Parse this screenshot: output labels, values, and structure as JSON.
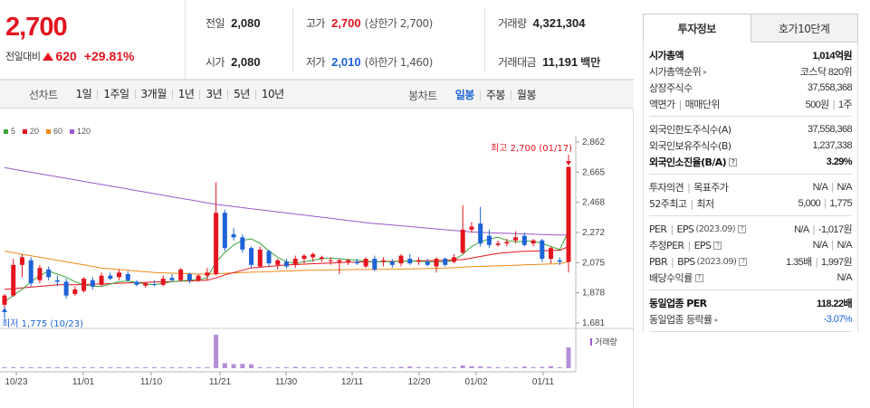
{
  "summary": {
    "price": "2,700",
    "change_label": "전일대비",
    "change_value": "620",
    "change_rate": "+29.81%",
    "prev_close": {
      "label": "전일",
      "value": "2,080"
    },
    "open": {
      "label": "시가",
      "value": "2,080"
    },
    "high": {
      "label": "고가",
      "value": "2,700",
      "note": "(상한가 2,700)"
    },
    "low": {
      "label": "저가",
      "value": "2,010",
      "note": "(하한가 1,460)"
    },
    "volume": {
      "label": "거래량",
      "value": "4,321,304"
    },
    "amount": {
      "label": "거래대금",
      "value": "11,191",
      "unit": "백만"
    }
  },
  "period_bar": {
    "line_label": "선차트",
    "line_items": [
      "1일",
      "1주일",
      "3개월",
      "1년",
      "3년",
      "5년",
      "10년"
    ],
    "candle_label": "봉차트",
    "candle_items": [
      "일봉",
      "주봉",
      "월봉"
    ],
    "candle_active": "일봉"
  },
  "chart_data": {
    "type": "candlestick",
    "legend": [
      {
        "name": "5",
        "color": "#3aa63a"
      },
      {
        "name": "20",
        "color": "#e4141f"
      },
      {
        "name": "60",
        "color": "#f08a17"
      },
      {
        "name": "120",
        "color": "#9b59c9"
      }
    ],
    "y_ticks": [
      "2,862",
      "2,665",
      "2,468",
      "2,272",
      "2,075",
      "1,878",
      "1,681"
    ],
    "ylim": [
      1681,
      2862
    ],
    "x_ticks": [
      "10/23",
      "11/01",
      "11/10",
      "11/21",
      "11/30",
      "12/11",
      "12/20",
      "01/02",
      "01/11"
    ],
    "max_label": "최고 2,700 (01/17)",
    "min_label": "최저 1,775 (10/23)",
    "volume_label": "거래량",
    "colors": {
      "up": "#e4141f",
      "down": "#1e63d8"
    },
    "candles": [
      {
        "o": 1800,
        "h": 1870,
        "l": 1775,
        "c": 1860
      },
      {
        "o": 1860,
        "h": 2100,
        "l": 1850,
        "c": 2060
      },
      {
        "o": 2060,
        "h": 2130,
        "l": 1980,
        "c": 2110
      },
      {
        "o": 2090,
        "h": 2110,
        "l": 1920,
        "c": 1940
      },
      {
        "o": 1960,
        "h": 2060,
        "l": 1940,
        "c": 2040
      },
      {
        "o": 2030,
        "h": 2050,
        "l": 1960,
        "c": 1980
      },
      {
        "o": 1960,
        "h": 1990,
        "l": 1920,
        "c": 1950
      },
      {
        "o": 1950,
        "h": 1970,
        "l": 1840,
        "c": 1860
      },
      {
        "o": 1870,
        "h": 1920,
        "l": 1860,
        "c": 1900
      },
      {
        "o": 1890,
        "h": 1980,
        "l": 1880,
        "c": 1970
      },
      {
        "o": 1960,
        "h": 1980,
        "l": 1900,
        "c": 1920
      },
      {
        "o": 1930,
        "h": 2010,
        "l": 1920,
        "c": 1990
      },
      {
        "o": 1990,
        "h": 2010,
        "l": 1960,
        "c": 1970
      },
      {
        "o": 1980,
        "h": 2030,
        "l": 1960,
        "c": 2010
      },
      {
        "o": 2000,
        "h": 2020,
        "l": 1950,
        "c": 1960
      },
      {
        "o": 1950,
        "h": 1960,
        "l": 1920,
        "c": 1930
      },
      {
        "o": 1925,
        "h": 1950,
        "l": 1910,
        "c": 1940
      },
      {
        "o": 1935,
        "h": 1960,
        "l": 1920,
        "c": 1930
      },
      {
        "o": 1930,
        "h": 1990,
        "l": 1920,
        "c": 1970
      },
      {
        "o": 1975,
        "h": 2000,
        "l": 1955,
        "c": 1960
      },
      {
        "o": 1960,
        "h": 2040,
        "l": 1950,
        "c": 2030
      },
      {
        "o": 2000,
        "h": 2010,
        "l": 1940,
        "c": 1960
      },
      {
        "o": 1960,
        "h": 2000,
        "l": 1950,
        "c": 1990
      },
      {
        "o": 1990,
        "h": 2040,
        "l": 1960,
        "c": 2010
      },
      {
        "o": 2000,
        "h": 2600,
        "l": 1990,
        "c": 2400
      },
      {
        "o": 2400,
        "h": 2420,
        "l": 2150,
        "c": 2170
      },
      {
        "o": 2260,
        "h": 2300,
        "l": 2220,
        "c": 2240
      },
      {
        "o": 2240,
        "h": 2260,
        "l": 2140,
        "c": 2160
      },
      {
        "o": 2170,
        "h": 2180,
        "l": 2040,
        "c": 2060
      },
      {
        "o": 2050,
        "h": 2180,
        "l": 2040,
        "c": 2160
      },
      {
        "o": 2150,
        "h": 2160,
        "l": 2050,
        "c": 2070
      },
      {
        "o": 2060,
        "h": 2100,
        "l": 2030,
        "c": 2090
      },
      {
        "o": 2080,
        "h": 2100,
        "l": 2040,
        "c": 2050
      },
      {
        "o": 2060,
        "h": 2120,
        "l": 2040,
        "c": 2100
      },
      {
        "o": 2100,
        "h": 2130,
        "l": 2070,
        "c": 2120
      },
      {
        "o": 2110,
        "h": 2140,
        "l": 2080,
        "c": 2130
      },
      {
        "o": 2100,
        "h": 2120,
        "l": 2080,
        "c": 2110
      },
      {
        "o": 2090,
        "h": 2110,
        "l": 2060,
        "c": 2090
      },
      {
        "o": 2080,
        "h": 2100,
        "l": 2000,
        "c": 2090
      },
      {
        "o": 2080,
        "h": 2100,
        "l": 2060,
        "c": 2090
      },
      {
        "o": 2080,
        "h": 2100,
        "l": 2060,
        "c": 2070
      },
      {
        "o": 2050,
        "h": 2110,
        "l": 2040,
        "c": 2100
      },
      {
        "o": 2100,
        "h": 2120,
        "l": 2020,
        "c": 2030
      },
      {
        "o": 2080,
        "h": 2110,
        "l": 2050,
        "c": 2090
      },
      {
        "o": 2080,
        "h": 2100,
        "l": 2040,
        "c": 2060
      },
      {
        "o": 2070,
        "h": 2130,
        "l": 2050,
        "c": 2120
      },
      {
        "o": 2100,
        "h": 2130,
        "l": 2060,
        "c": 2070
      },
      {
        "o": 2080,
        "h": 2110,
        "l": 2060,
        "c": 2090
      },
      {
        "o": 2080,
        "h": 2100,
        "l": 2050,
        "c": 2060
      },
      {
        "o": 2050,
        "h": 2110,
        "l": 2010,
        "c": 2100
      },
      {
        "o": 2100,
        "h": 2110,
        "l": 2050,
        "c": 2060
      },
      {
        "o": 2080,
        "h": 2130,
        "l": 2070,
        "c": 2110
      },
      {
        "o": 2140,
        "h": 2450,
        "l": 2130,
        "c": 2290
      },
      {
        "o": 2290,
        "h": 2340,
        "l": 2270,
        "c": 2310
      },
      {
        "o": 2330,
        "h": 2440,
        "l": 2180,
        "c": 2200
      },
      {
        "o": 2250,
        "h": 2290,
        "l": 2170,
        "c": 2190
      },
      {
        "o": 2190,
        "h": 2220,
        "l": 2180,
        "c": 2200
      },
      {
        "o": 2200,
        "h": 2230,
        "l": 2180,
        "c": 2210
      },
      {
        "o": 2220,
        "h": 2280,
        "l": 2200,
        "c": 2240
      },
      {
        "o": 2250,
        "h": 2270,
        "l": 2180,
        "c": 2190
      },
      {
        "o": 2200,
        "h": 2230,
        "l": 2180,
        "c": 2220
      },
      {
        "o": 2220,
        "h": 2230,
        "l": 2080,
        "c": 2100
      },
      {
        "o": 2100,
        "h": 2180,
        "l": 2070,
        "c": 2170
      },
      {
        "o": 2090,
        "h": 2110,
        "l": 2060,
        "c": 2080
      },
      {
        "o": 2080,
        "h": 2700,
        "l": 2010,
        "c": 2700
      }
    ],
    "volumes": [
      0.02,
      0.03,
      0.02,
      0.02,
      0.01,
      0.01,
      0.01,
      0.02,
      0.01,
      0.01,
      0.01,
      0.01,
      0.01,
      0.01,
      0.01,
      0.01,
      0.01,
      0.01,
      0.01,
      0.01,
      0.01,
      0.01,
      0.01,
      0.01,
      1.0,
      0.15,
      0.12,
      0.13,
      0.12,
      0.03,
      0.02,
      0.02,
      0.01,
      0.04,
      0.03,
      0.02,
      0.02,
      0.02,
      0.01,
      0.01,
      0.02,
      0.03,
      0.02,
      0.01,
      0.02,
      0.04,
      0.05,
      0.03,
      0.02,
      0.02,
      0.01,
      0.02,
      0.08,
      0.06,
      0.05,
      0.04,
      0.03,
      0.02,
      0.03,
      0.05,
      0.03,
      0.04,
      0.06,
      0.03,
      0.62
    ],
    "ma5": [
      1820,
      1860,
      1900,
      1950,
      1990,
      2020,
      2000,
      1980,
      1950,
      1930,
      1920,
      1920,
      1935,
      1950,
      1955,
      1945,
      1935,
      1930,
      1940,
      1950,
      1955,
      1960,
      1965,
      1975,
      2080,
      2140,
      2190,
      2220,
      2230,
      2200,
      2150,
      2110,
      2080,
      2070,
      2080,
      2090,
      2100,
      2105,
      2100,
      2095,
      2090,
      2085,
      2080,
      2080,
      2080,
      2085,
      2085,
      2085,
      2080,
      2080,
      2080,
      2090,
      2130,
      2180,
      2210,
      2230,
      2240,
      2220,
      2210,
      2215,
      2215,
      2200,
      2180,
      2160,
      2280
    ],
    "ma20": [
      1900,
      1905,
      1910,
      1915,
      1920,
      1925,
      1930,
      1930,
      1930,
      1932,
      1935,
      1935,
      1938,
      1940,
      1942,
      1945,
      1945,
      1948,
      1950,
      1950,
      1955,
      1955,
      1958,
      1960,
      1975,
      1995,
      2010,
      2025,
      2040,
      2045,
      2050,
      2055,
      2060,
      2062,
      2065,
      2068,
      2070,
      2072,
      2075,
      2077,
      2078,
      2080,
      2080,
      2082,
      2083,
      2085,
      2085,
      2087,
      2088,
      2088,
      2090,
      2092,
      2095,
      2105,
      2115,
      2125,
      2135,
      2140,
      2145,
      2148,
      2150,
      2152,
      2155,
      2155,
      2180
    ],
    "ma60": [
      2150,
      2140,
      2130,
      2120,
      2110,
      2100,
      2090,
      2080,
      2070,
      2060,
      2050,
      2040,
      2035,
      2030,
      2025,
      2020,
      2015,
      2010,
      2008,
      2006,
      2004,
      2002,
      2000,
      2000,
      2002,
      2005,
      2008,
      2010,
      2012,
      2014,
      2016,
      2018,
      2020,
      2022,
      2024,
      2025,
      2026,
      2027,
      2028,
      2029,
      2030,
      2030,
      2030,
      2031,
      2032,
      2033,
      2034,
      2035,
      2036,
      2038,
      2040,
      2042,
      2045,
      2048,
      2050,
      2052,
      2054,
      2056,
      2058,
      2060,
      2062,
      2064,
      2066,
      2068,
      2080
    ],
    "ma120": [
      2695,
      2685,
      2675,
      2665,
      2655,
      2645,
      2635,
      2625,
      2615,
      2605,
      2595,
      2585,
      2575,
      2565,
      2555,
      2545,
      2535,
      2525,
      2515,
      2505,
      2495,
      2485,
      2475,
      2465,
      2455,
      2448,
      2441,
      2434,
      2427,
      2420,
      2413,
      2406,
      2399,
      2392,
      2385,
      2378,
      2371,
      2364,
      2357,
      2350,
      2343,
      2336,
      2330,
      2325,
      2320,
      2315,
      2310,
      2305,
      2300,
      2295,
      2290,
      2285,
      2280,
      2275,
      2272,
      2270,
      2268,
      2266,
      2264,
      2262,
      2260,
      2258,
      2256,
      2255,
      2255
    ]
  },
  "tabs": [
    "투자정보",
    "호가10단계"
  ],
  "info": {
    "market_cap": {
      "label": "시가총액",
      "value": "1,014억원"
    },
    "market_cap_rank": {
      "label": "시가총액순위",
      "value": "코스닥 820위"
    },
    "shares": {
      "label": "상장주식수",
      "value": "37,558,368"
    },
    "par_value": {
      "label": "액면가",
      "label2": "매매단위",
      "value": "500원",
      "value2": "1주"
    },
    "foreign_limit": {
      "label": "외국인한도주식수(A)",
      "value": "37,558,368"
    },
    "foreign_hold": {
      "label": "외국인보유주식수(B)",
      "value": "1,237,338"
    },
    "foreign_ratio": {
      "label": "외국인소진율(B/A)",
      "value": "3.29%"
    },
    "opinion": {
      "label": "투자의견",
      "label2": "목표주가",
      "value": "N/A",
      "value2": "N/A"
    },
    "week52": {
      "label": "52주최고",
      "label2": "최저",
      "value": "5,000",
      "value2": "1,775"
    },
    "per": {
      "label": "PER",
      "label2": "EPS",
      "period": "(2023.09)",
      "value": "N/A",
      "value2": "-1,017원"
    },
    "est_per": {
      "label": "추정PER",
      "label2": "EPS",
      "value": "N/A",
      "value2": "N/A"
    },
    "pbr": {
      "label": "PBR",
      "label2": "BPS",
      "period": "(2023.09)",
      "value": "1.35배",
      "value2": "1,997원"
    },
    "dividend": {
      "label": "배당수익률",
      "value": "N/A"
    },
    "sector_per": {
      "label": "동일업종 PER",
      "value": "118.22배"
    },
    "sector_change": {
      "label": "동일업종 등락률",
      "value": "-3.07%"
    }
  }
}
